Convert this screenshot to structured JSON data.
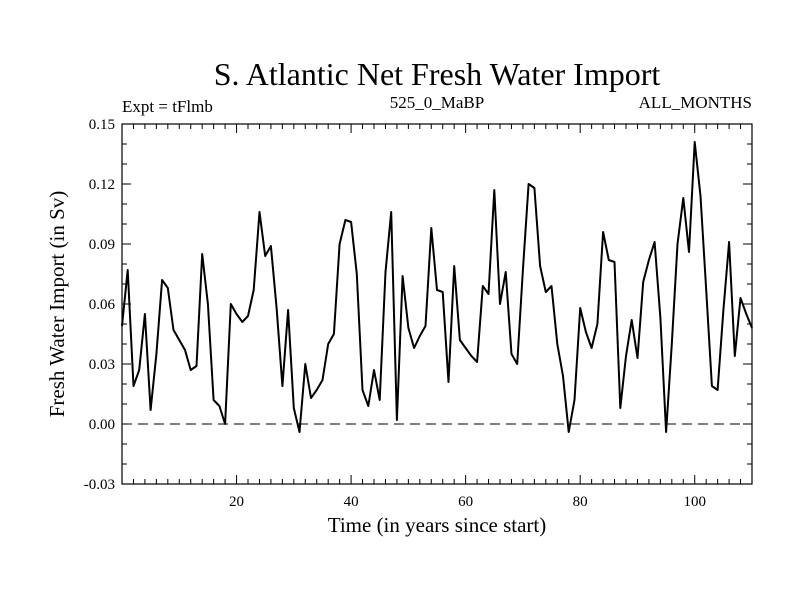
{
  "chart_data": {
    "type": "line",
    "title": "S. Atlantic Net Fresh Water Import",
    "subtitle_left": "Expt = tFlmb",
    "subtitle_center": "525_0_MaBP",
    "subtitle_right": "ALL_MONTHS",
    "xlabel": "Time (in years since start)",
    "ylabel": "Fresh Water Import (in Sv)",
    "xlim": [
      0,
      110
    ],
    "ylim": [
      -0.03,
      0.15
    ],
    "xticks": [
      20,
      40,
      60,
      80,
      100
    ],
    "xtick_labels": [
      "20",
      "40",
      "60",
      "80",
      "100"
    ],
    "yticks": [
      -0.03,
      0.0,
      0.03,
      0.06,
      0.09,
      0.12,
      0.15
    ],
    "ytick_labels": [
      "-0.03",
      "0.00",
      "0.03",
      "0.06",
      "0.09",
      "0.12",
      "0.15"
    ],
    "reference_line": {
      "y": 0.0,
      "style": "dashed"
    },
    "series": [
      {
        "name": "Net Fresh Water Import",
        "x": [
          0,
          1,
          2,
          3,
          4,
          5,
          6,
          7,
          8,
          9,
          10,
          11,
          12,
          13,
          14,
          15,
          16,
          17,
          18,
          19,
          20,
          21,
          22,
          23,
          24,
          25,
          26,
          27,
          28,
          29,
          30,
          31,
          32,
          33,
          34,
          35,
          36,
          37,
          38,
          39,
          40,
          41,
          42,
          43,
          44,
          45,
          46,
          47,
          48,
          49,
          50,
          51,
          52,
          53,
          54,
          55,
          56,
          57,
          58,
          59,
          60,
          61,
          62,
          63,
          64,
          65,
          66,
          67,
          68,
          69,
          70,
          71,
          72,
          73,
          74,
          75,
          76,
          77,
          78,
          79,
          80,
          81,
          82,
          83,
          84,
          85,
          86,
          87,
          88,
          89,
          90,
          91,
          92,
          93,
          94,
          95,
          96,
          97,
          98,
          99,
          100,
          101,
          102,
          103,
          104,
          105,
          106,
          107,
          108,
          109,
          110
        ],
        "values": [
          0.049,
          0.077,
          0.019,
          0.027,
          0.055,
          0.007,
          0.035,
          0.072,
          0.068,
          0.047,
          0.042,
          0.037,
          0.027,
          0.029,
          0.085,
          0.06,
          0.012,
          0.009,
          0.0,
          0.06,
          0.055,
          0.051,
          0.054,
          0.067,
          0.106,
          0.084,
          0.089,
          0.058,
          0.019,
          0.057,
          0.008,
          -0.004,
          0.03,
          0.013,
          0.017,
          0.022,
          0.04,
          0.045,
          0.09,
          0.102,
          0.101,
          0.075,
          0.017,
          0.009,
          0.027,
          0.012,
          0.076,
          0.106,
          0.002,
          0.074,
          0.048,
          0.038,
          0.044,
          0.049,
          0.098,
          0.067,
          0.066,
          0.021,
          0.079,
          0.042,
          0.038,
          0.034,
          0.031,
          0.069,
          0.065,
          0.117,
          0.06,
          0.076,
          0.035,
          0.03,
          0.077,
          0.12,
          0.118,
          0.079,
          0.066,
          0.069,
          0.04,
          0.024,
          -0.004,
          0.012,
          0.058,
          0.046,
          0.038,
          0.05,
          0.096,
          0.082,
          0.081,
          0.008,
          0.034,
          0.052,
          0.033,
          0.071,
          0.082,
          0.091,
          0.053,
          -0.004,
          0.04,
          0.09,
          0.113,
          0.086,
          0.141,
          0.114,
          0.067,
          0.019,
          0.017,
          0.057,
          0.091,
          0.034,
          0.063,
          0.055,
          0.048
        ]
      }
    ]
  }
}
